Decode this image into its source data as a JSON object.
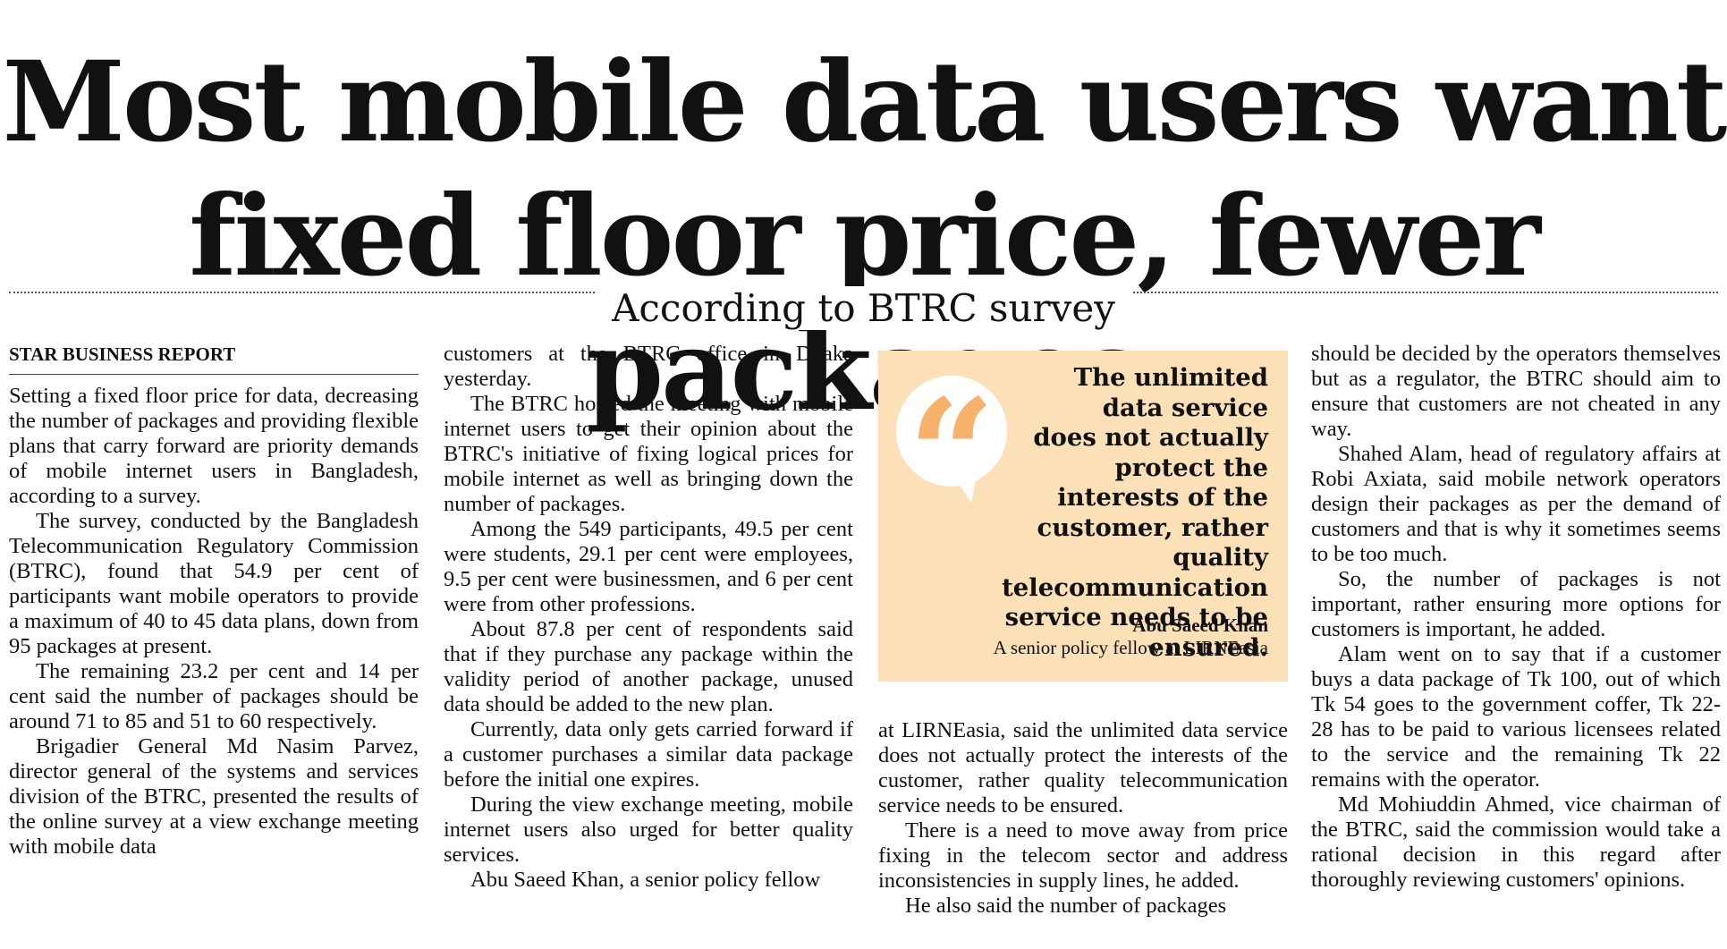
{
  "article": {
    "headline_line1": "Most mobile data users want",
    "headline_line2": "fixed floor price, fewer packages",
    "subhead": "According to BTRC survey",
    "byline": "STAR BUSINESS REPORT"
  },
  "columns": {
    "col1": [
      "Setting a fixed floor price for data, decreasing the number of packages and providing flexible plans that carry forward are priority demands of mobile internet users in Bangladesh, according to a survey.",
      "The survey, conducted by the Bangladesh Telecommunication Regulatory Commission (BTRC), found that 54.9 per cent of participants want mobile operators to provide a maximum of 40 to 45 data plans, down from 95 packages at present.",
      "The remaining 23.2 per cent and 14 per cent said the number of packages should be around 71 to 85 and 51 to 60 respectively.",
      "Brigadier General Md Nasim Parvez, director general of the systems and services division of the BTRC, presented the results of the online survey at a view exchange meeting with mobile data"
    ],
    "col2": [
      "customers at the BTRC office in Dhaka yesterday.",
      "The BTRC hosted the meeting with mobile internet users to get their opinion about the BTRC's initiative of fixing logical prices for mobile internet as well as bringing down the number of packages.",
      "Among the 549 participants, 49.5 per cent were students, 29.1 per cent were employees, 9.5 per cent were businessmen, and 6 per cent were from other professions.",
      "About 87.8 per cent of respondents said that if they purchase any package within the validity period of another package, unused data should be added to the new plan.",
      "Currently, data only gets carried forward if a customer purchases a similar data package before the initial one expires.",
      "During the view exchange meeting, mobile internet users also urged for better quality services.",
      "Abu Saeed Khan, a senior policy fellow"
    ],
    "col3": [
      "at LIRNEasia, said the unlimited data service does not actually protect the interests of the customer, rather quality telecommunication service needs to be ensured.",
      "There is a need to move away from price fixing in the telecom sector and address inconsistencies in supply lines, he added.",
      "He also said the number of packages"
    ],
    "col4": [
      "should be decided by the operators themselves but as a regulator, the BTRC should aim to ensure that customers are not cheated in any way.",
      "Shahed Alam, head of regulatory affairs at Robi Axiata, said mobile network operators design their packages as per the demand of customers and that is why it sometimes seems to be too much.",
      "So, the number of packages is not important, rather ensuring more options for customers is important, he added.",
      "Alam went on to say that if a customer buys a data package of Tk 100, out of which Tk 54 goes to the government coffer, Tk 22-28 has to be paid to various licensees related to the service and the remaining Tk 22 remains with the operator.",
      "Md Mohiuddin Ahmed, vice chairman of the BTRC, said the commission would take a rational decision in this regard after thoroughly reviewing customers' opinions."
    ]
  },
  "pull_quote": {
    "lines": [
      "The unlimited",
      "data service",
      "does not actually",
      "protect the",
      "interests of the",
      "customer, rather",
      "quality telecommunication",
      "service needs to be ensured."
    ],
    "attribution_name": "Abu Saeed Khan",
    "attribution_role": "A senior policy fellow at LIRNEasia",
    "glyph": "“",
    "icon": "quote-bubble-icon",
    "background_color": "#fbe0b8",
    "glyph_color": "#f6b26b"
  }
}
